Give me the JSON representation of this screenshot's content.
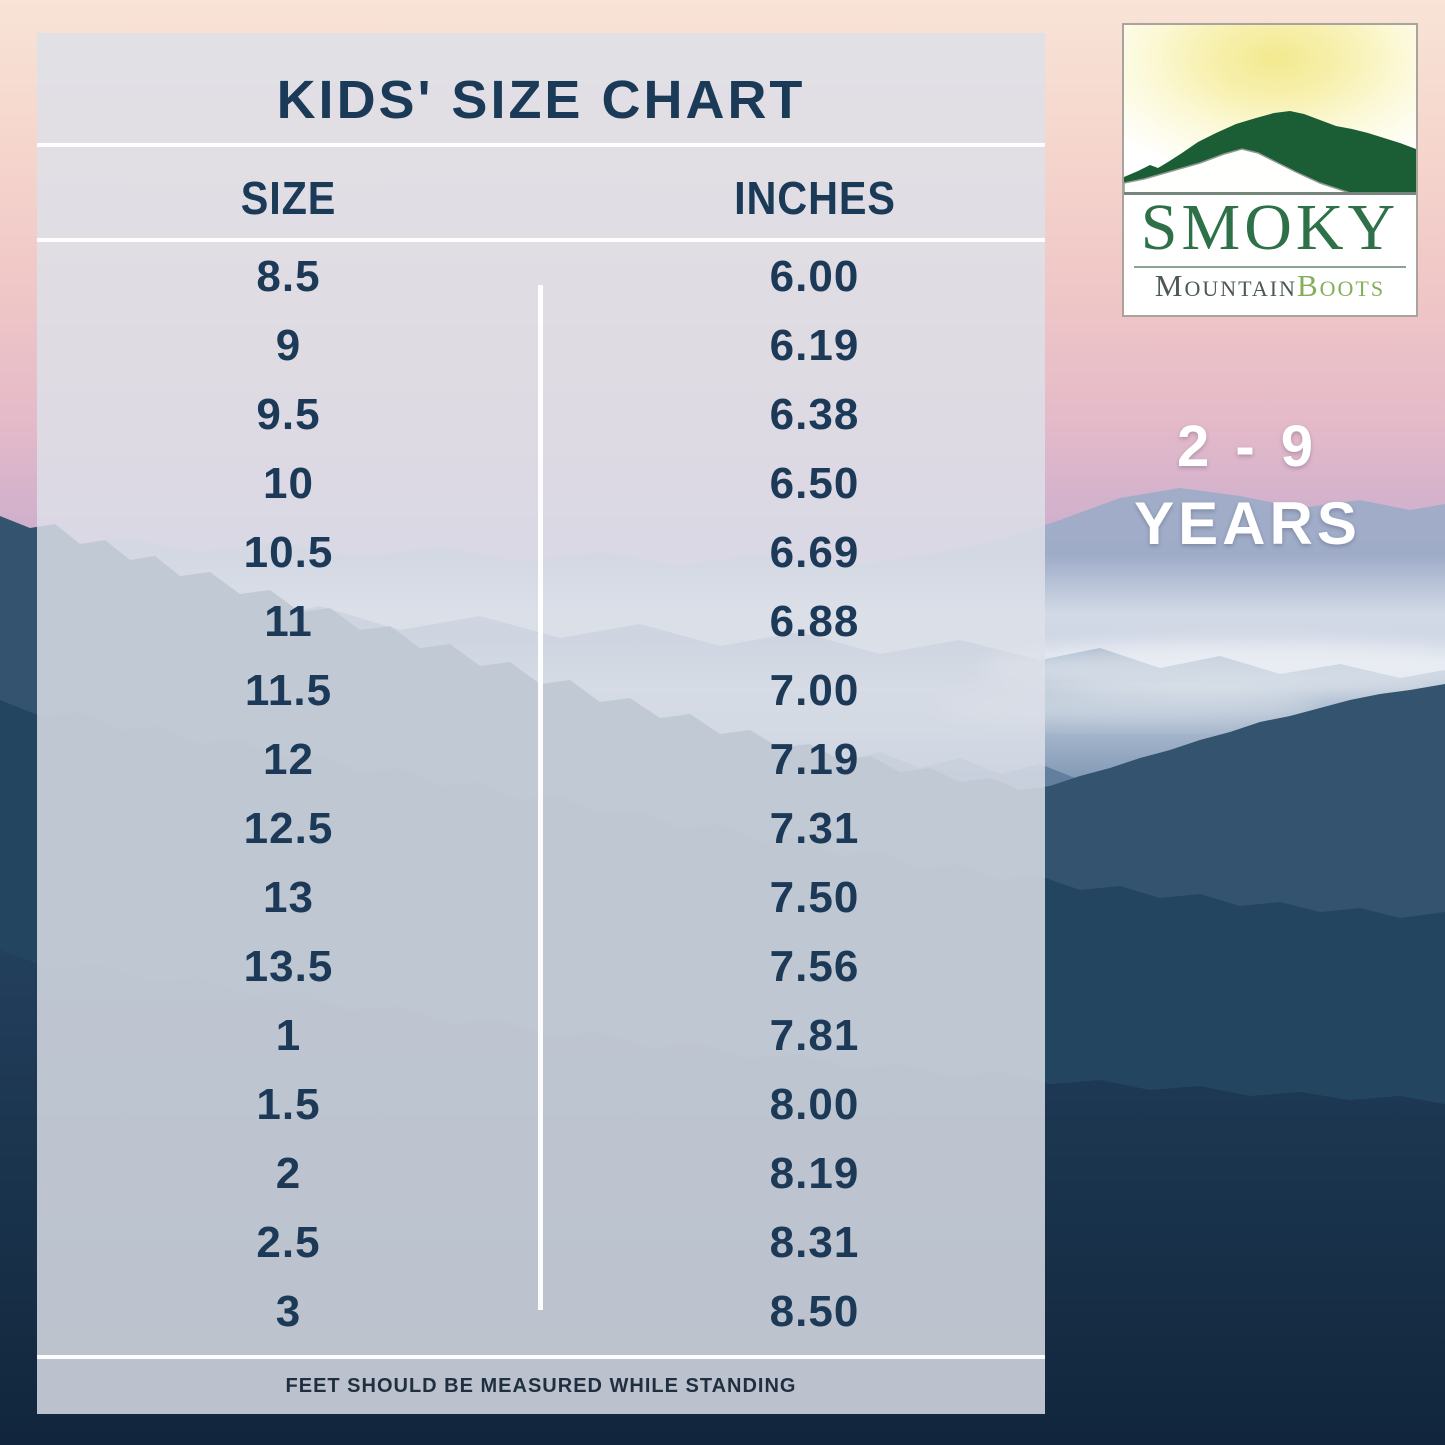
{
  "chart_data": {
    "type": "table",
    "title": "KIDS' SIZE CHART",
    "columns": [
      "SIZE",
      "INCHES"
    ],
    "rows": [
      [
        "8.5",
        "6.00"
      ],
      [
        "9",
        "6.19"
      ],
      [
        "9.5",
        "6.38"
      ],
      [
        "10",
        "6.50"
      ],
      [
        "10.5",
        "6.69"
      ],
      [
        "11",
        "6.88"
      ],
      [
        "11.5",
        "7.00"
      ],
      [
        "12",
        "7.19"
      ],
      [
        "12.5",
        "7.31"
      ],
      [
        "13",
        "7.50"
      ],
      [
        "13.5",
        "7.56"
      ],
      [
        "1",
        "7.81"
      ],
      [
        "1.5",
        "8.00"
      ],
      [
        "2",
        "8.19"
      ],
      [
        "2.5",
        "8.31"
      ],
      [
        "3",
        "8.50"
      ]
    ],
    "footnote": "FEET SHOULD BE MEASURED WHILE STANDING"
  },
  "logo": {
    "smoky": "SMOKY",
    "mountain": "Mountain",
    "boots": "Boots"
  },
  "age_range": {
    "line1": "2 - 9",
    "line2": "YEARS"
  },
  "colors": {
    "text_navy": "#1c3a57",
    "footnote_navy": "#1f2f40",
    "panel_overlay": "#dce0e8",
    "divider_white": "#ffffff",
    "logo_green_dark": "#1b5e35",
    "logo_smoky_green": "#2e7148",
    "logo_mountain_gray": "#4c5850",
    "logo_boots_green": "#85ae5c",
    "age_text_white": "#ffffff",
    "sky_peach": "#f8e3d6",
    "sky_pink": "#efc7c7",
    "sky_lavender": "#aba8cd",
    "mountain_dark_navy": "#1a3650"
  }
}
